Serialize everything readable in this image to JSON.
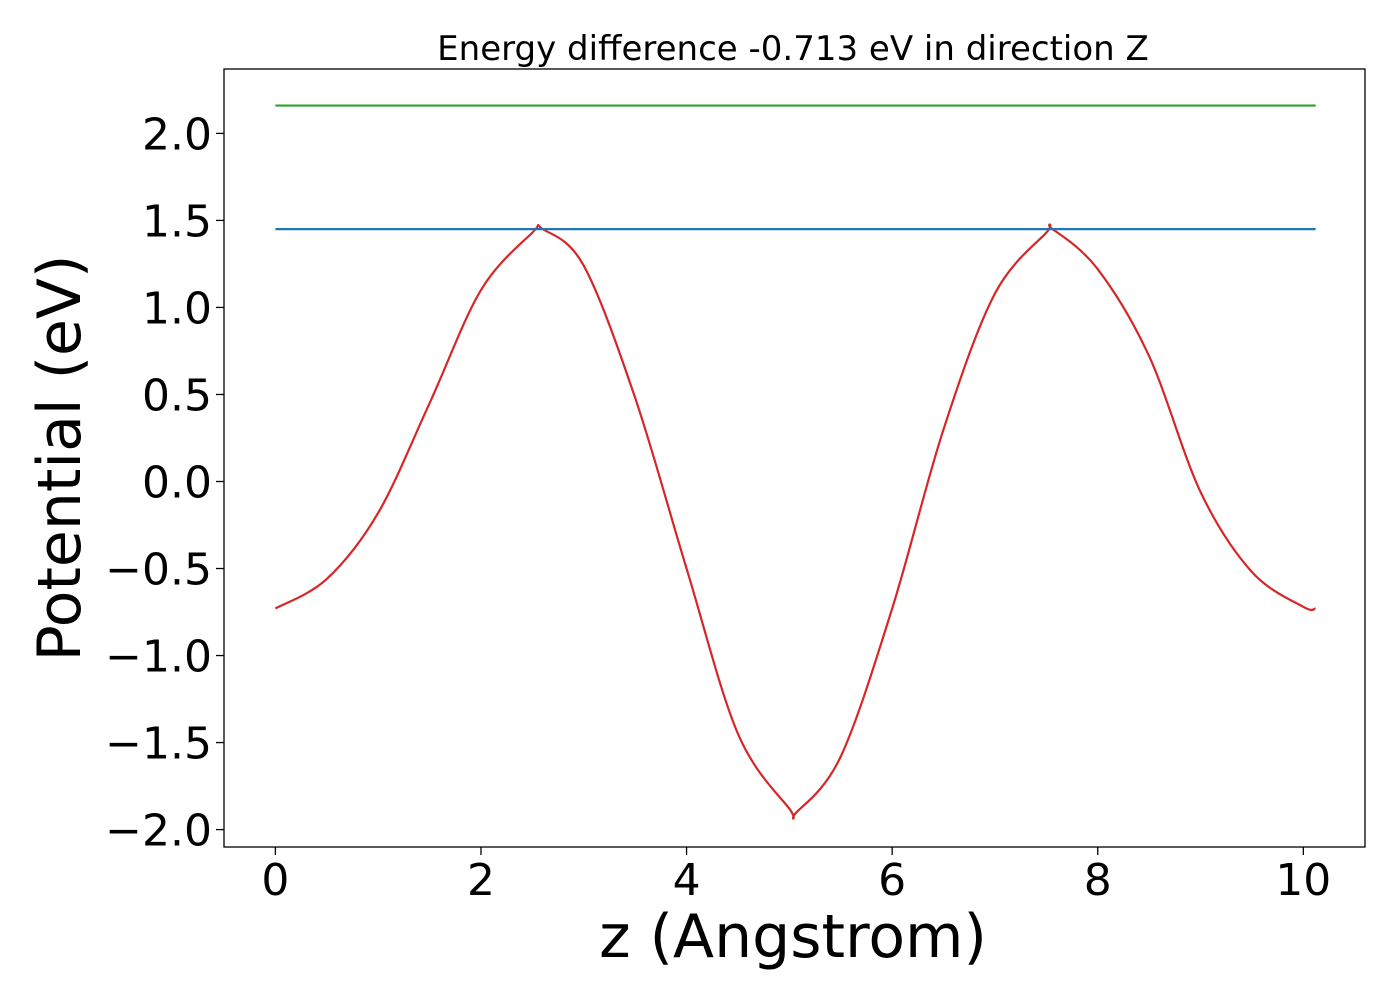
{
  "chart_data": {
    "type": "line",
    "title": "Energy difference -0.713 eV in direction Z",
    "xlabel": "z (Angstrom)",
    "ylabel": "Potential (eV)",
    "xlim": [
      -0.5,
      10.6
    ],
    "ylim": [
      -2.1,
      2.37
    ],
    "x_ticks": [
      0,
      2,
      4,
      6,
      8,
      10
    ],
    "x_tick_labels": [
      "0",
      "2",
      "4",
      "6",
      "8",
      "10"
    ],
    "y_ticks": [
      2.0,
      1.5,
      1.0,
      0.5,
      0.0,
      -0.5,
      -1.0,
      -1.5,
      -2.0
    ],
    "y_tick_labels": [
      "2.0",
      "1.5",
      "1.0",
      "0.5",
      "0.0",
      "−0.5",
      "−1.0",
      "−1.5",
      "−2.0"
    ],
    "grid": false,
    "legend": "none",
    "series": [
      {
        "color": "#d62728",
        "x": [
          0,
          0.5,
          1.0,
          1.5,
          2.0,
          2.5,
          2.6,
          3.0,
          3.5,
          4.0,
          4.5,
          5.0,
          5.07,
          5.5,
          6.0,
          6.5,
          7.0,
          7.5,
          7.56,
          8.0,
          8.5,
          9.0,
          9.5,
          10.0,
          10.12
        ],
        "y": [
          -0.73,
          -0.56,
          -0.18,
          0.45,
          1.1,
          1.43,
          1.45,
          1.24,
          0.48,
          -0.5,
          -1.45,
          -1.88,
          -1.9,
          -1.58,
          -0.73,
          0.3,
          1.08,
          1.43,
          1.45,
          1.22,
          0.72,
          -0.06,
          -0.52,
          -0.72,
          -0.73
        ]
      },
      {
        "color": "#1f77b4",
        "x": [
          0,
          10.12
        ],
        "y": [
          1.45,
          1.45
        ]
      },
      {
        "color": "#2ca02c",
        "x": [
          0,
          10.12
        ],
        "y": [
          2.16,
          2.16
        ]
      }
    ]
  }
}
